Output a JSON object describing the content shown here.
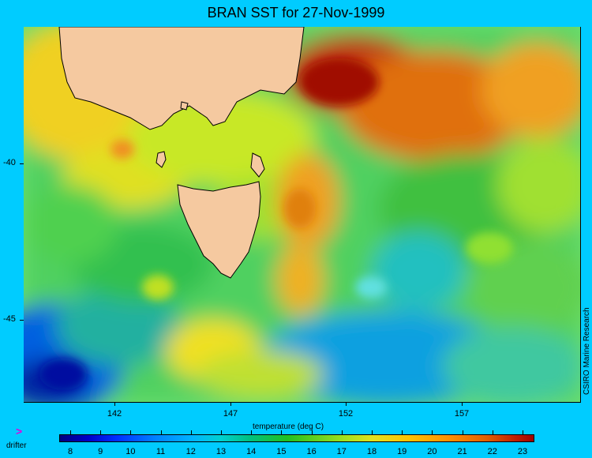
{
  "title": "BRAN SST for 27-Nov-1999",
  "credit": "CSIRO Marine Research",
  "axes": {
    "lat_labels": [
      "-40",
      "-45"
    ],
    "lon_labels": [
      "142",
      "147",
      "152",
      "157"
    ]
  },
  "colorbar": {
    "title": "temperature (deg C)",
    "ticks": [
      "8",
      "9",
      "10",
      "11",
      "12",
      "13",
      "14",
      "15",
      "16",
      "17",
      "18",
      "19",
      "20",
      "21",
      "22",
      "23"
    ]
  },
  "legend": {
    "arrow_symbol": ">",
    "label": "drifter",
    "arrow_color": "#e000e0"
  },
  "colors": {
    "background": "#00ccff",
    "land": "#f5c9a0"
  }
}
